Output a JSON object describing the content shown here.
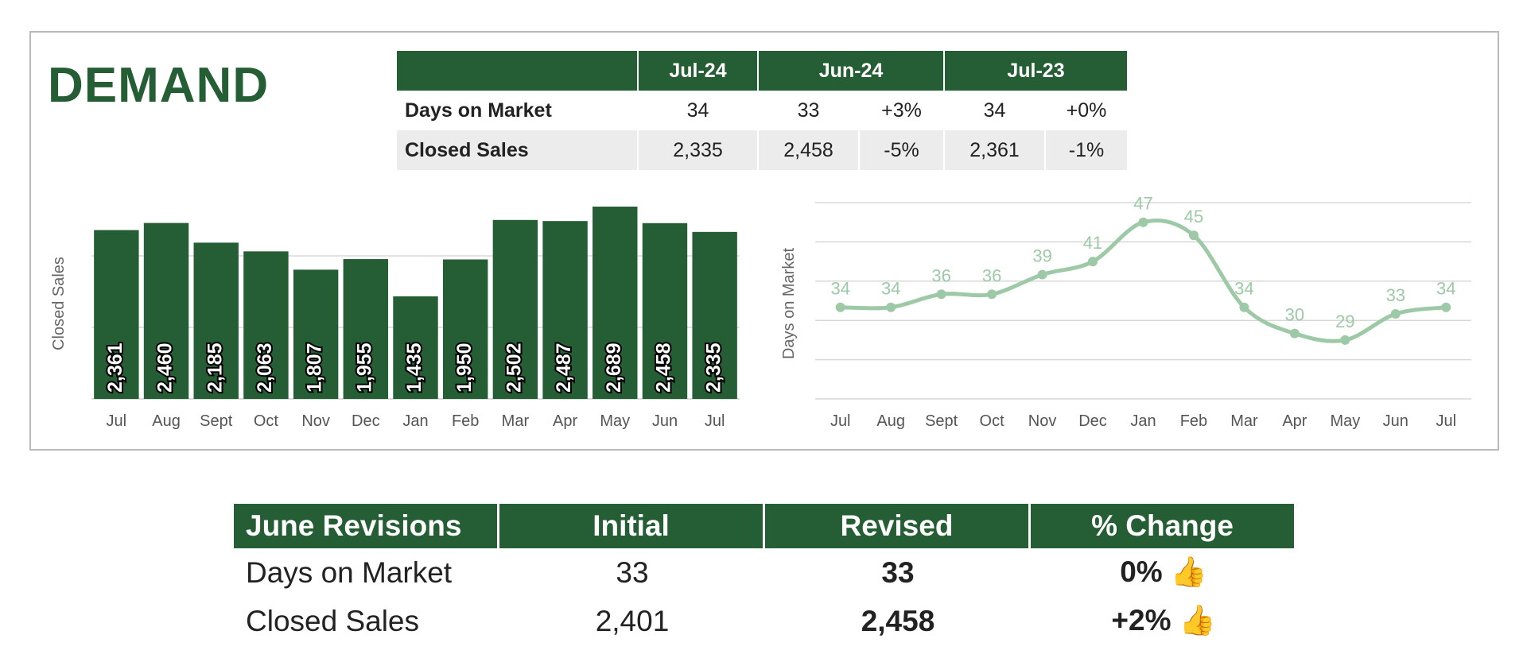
{
  "title": "DEMAND",
  "summary": {
    "headers": [
      "Jul-24",
      "Jun-24",
      "Jul-23"
    ],
    "rows": [
      {
        "label": "Days on Market",
        "jul24": "34",
        "jun24": "33",
        "jun24_change": "+3%",
        "jul23": "34",
        "jul23_change": "+0%"
      },
      {
        "label": "Closed Sales",
        "jul24": "2,335",
        "jun24": "2,458",
        "jun24_change": "-5%",
        "jul23": "2,361",
        "jul23_change": "-1%"
      }
    ]
  },
  "revisions": {
    "headers": [
      "June Revisions",
      "Initial",
      "Revised",
      "% Change"
    ],
    "rows": [
      {
        "label": "Days on Market",
        "initial": "33",
        "revised": "33",
        "change": "0%",
        "icon": "thumbs-up-icon"
      },
      {
        "label": "Closed Sales",
        "initial": "2,401",
        "revised": "2,458",
        "change": "+2%",
        "icon": "thumbs-up-icon"
      }
    ]
  },
  "colors": {
    "bar": "#255e34",
    "line": "#9dc9a6",
    "header": "#255e34"
  },
  "chart_data": [
    {
      "type": "bar",
      "ylabel": "Closed Sales",
      "categories": [
        "Jul",
        "Aug",
        "Sept",
        "Oct",
        "Nov",
        "Dec",
        "Jan",
        "Feb",
        "Mar",
        "Apr",
        "May",
        "Jun",
        "Jul"
      ],
      "values": [
        2361,
        2460,
        2185,
        2063,
        1807,
        1955,
        1435,
        1950,
        2502,
        2487,
        2689,
        2458,
        2335
      ],
      "labels": [
        "2,361",
        "2,460",
        "2,185",
        "2,063",
        "1,807",
        "1,955",
        "1,435",
        "1,950",
        "2,502",
        "2,487",
        "2,689",
        "2,458",
        "2,335"
      ],
      "grid": true
    },
    {
      "type": "line",
      "ylabel": "Days on Market",
      "categories": [
        "Jul",
        "Aug",
        "Sept",
        "Oct",
        "Nov",
        "Dec",
        "Jan",
        "Feb",
        "Mar",
        "Apr",
        "May",
        "Jun",
        "Jul"
      ],
      "values": [
        34,
        34,
        36,
        36,
        39,
        41,
        47,
        45,
        34,
        30,
        29,
        33,
        34
      ],
      "grid": true
    }
  ]
}
